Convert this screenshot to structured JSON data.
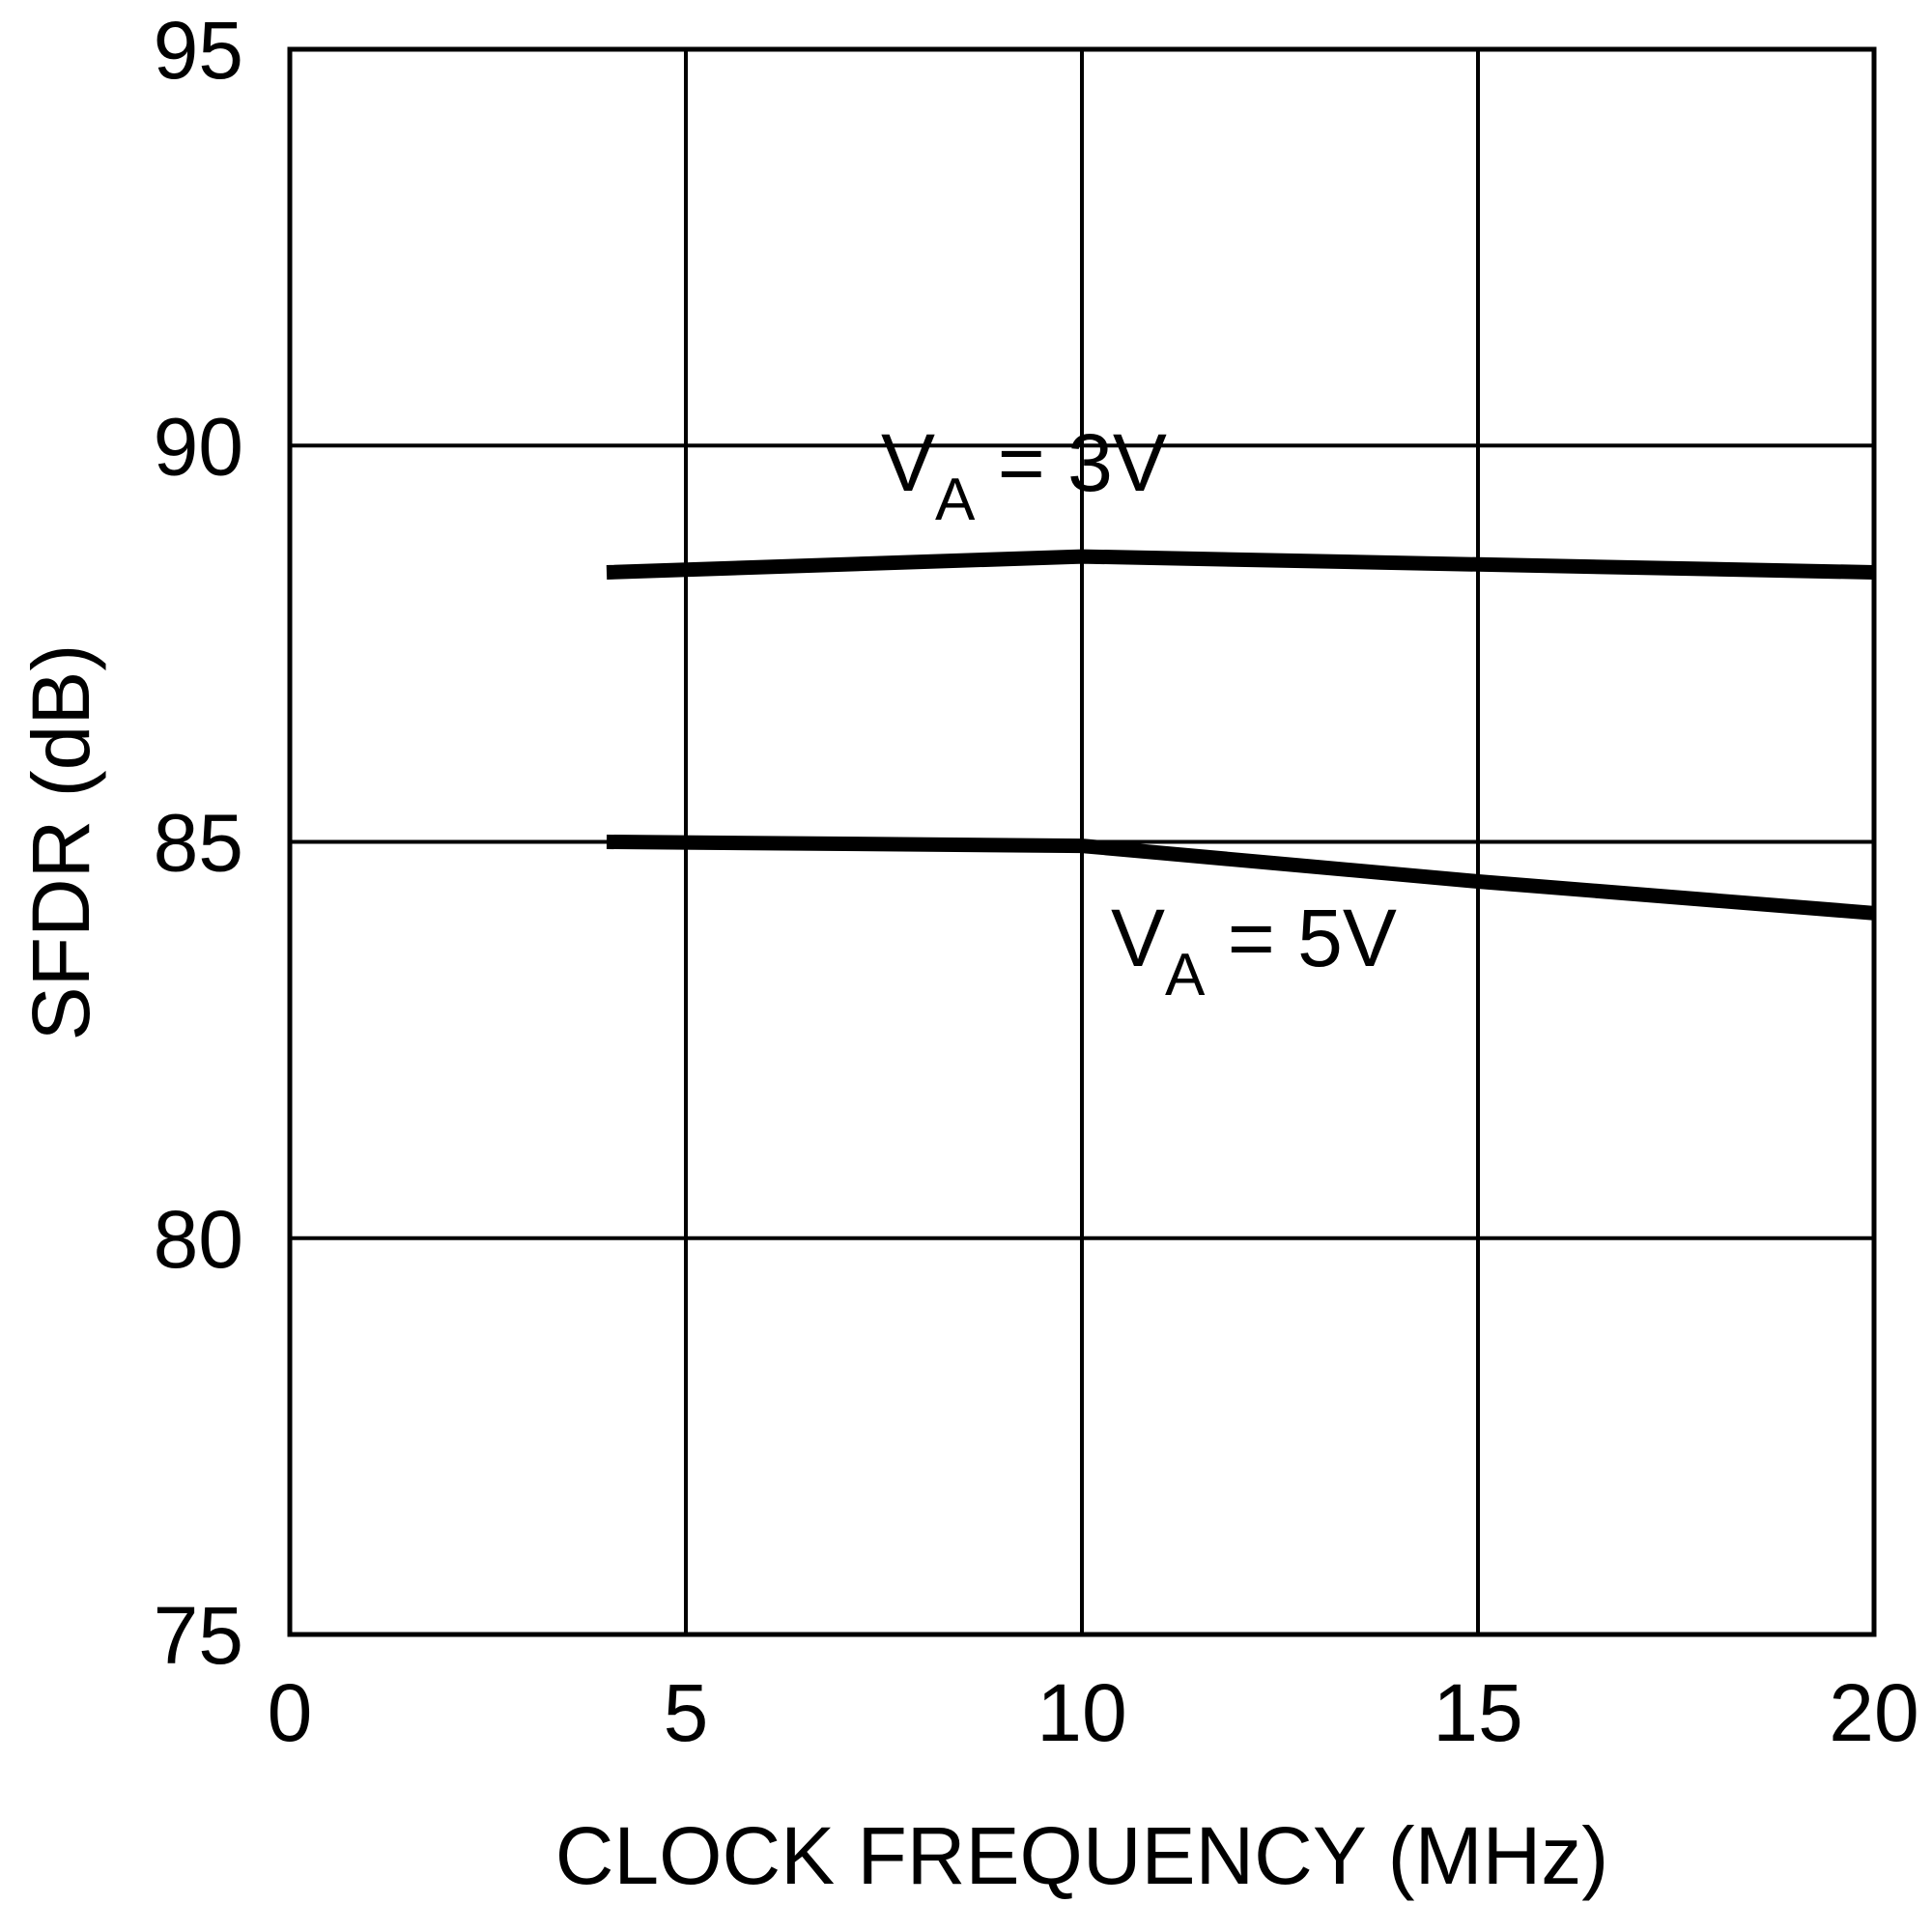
{
  "chart_data": {
    "type": "line",
    "title": "",
    "xlabel": "CLOCK FREQUENCY (MHz)",
    "ylabel": "SFDR (dB)",
    "xlim": [
      0,
      20
    ],
    "ylim": [
      75,
      95
    ],
    "xticks": [
      "0",
      "5",
      "10",
      "15",
      "20"
    ],
    "yticks": [
      "75",
      "80",
      "85",
      "90",
      "95"
    ],
    "grid": true,
    "colors": {
      "line": "#000000",
      "grid": "#000000",
      "background": "#ffffff"
    },
    "series": [
      {
        "x": [
          4,
          10,
          15,
          20
        ],
        "y": [
          88.4,
          88.6,
          88.5,
          88.4
        ]
      },
      {
        "x": [
          4,
          10,
          15,
          20
        ],
        "y": [
          85.0,
          84.95,
          84.5,
          84.1
        ]
      }
    ],
    "annotations": [
      {
        "main": "V",
        "sub": "A",
        "rest": " = 3V"
      },
      {
        "main": "V",
        "sub": "A",
        "rest": " = 5V"
      }
    ]
  }
}
